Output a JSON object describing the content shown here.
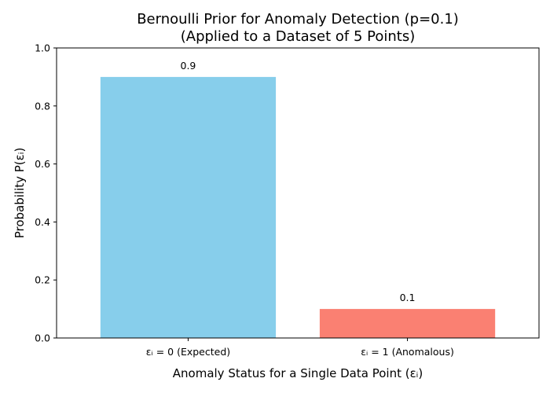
{
  "chart_data": {
    "type": "bar",
    "title_line1": "Bernoulli Prior for Anomaly Detection (p=0.1)",
    "title_line2": "(Applied to a Dataset of 5 Points)",
    "ylabel": "Probability P(εᵢ)",
    "xlabel": "Anomaly Status for a Single Data Point (εᵢ)",
    "categories": [
      "εᵢ = 0 (Expected)",
      "εᵢ = 1 (Anomalous)"
    ],
    "values": [
      0.9,
      0.1
    ],
    "value_labels": [
      "0.9",
      "0.1"
    ],
    "colors": [
      "#87ceeb",
      "#fa8072"
    ],
    "ylim": [
      0,
      1.0
    ],
    "yticks": [
      0.0,
      0.2,
      0.4,
      0.6,
      0.8,
      1.0
    ],
    "ytick_labels": [
      "0.0",
      "0.2",
      "0.4",
      "0.6",
      "0.8",
      "1.0"
    ],
    "grid": false,
    "legend": "none"
  }
}
